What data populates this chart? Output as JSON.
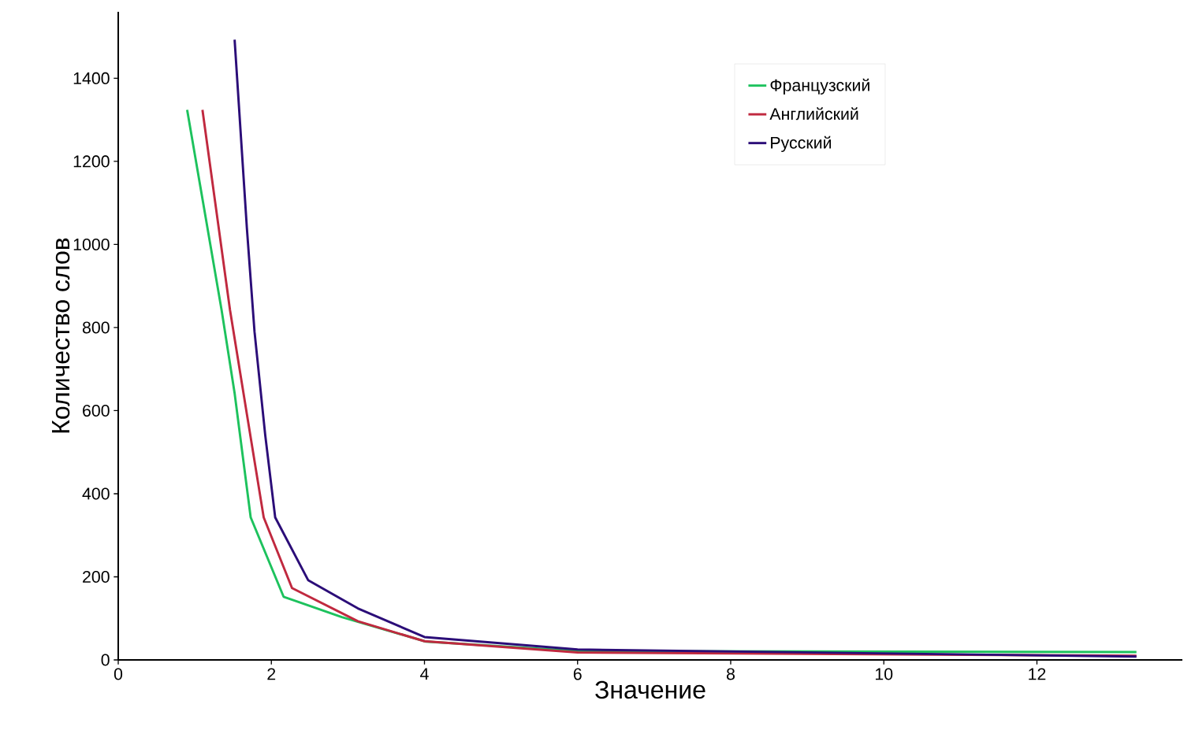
{
  "chart_data": {
    "type": "line",
    "xlabel": "Значение",
    "ylabel": "Количество слов",
    "xlim": [
      0,
      13.9
    ],
    "ylim": [
      0,
      1560
    ],
    "xticks": [
      0,
      2,
      4,
      6,
      8,
      10,
      12
    ],
    "yticks": [
      0,
      200,
      400,
      600,
      800,
      1000,
      1200,
      1400
    ],
    "legend": "top",
    "grid": false,
    "marker": "none",
    "line_style": "solid",
    "series": [
      {
        "name": "Французский",
        "color": "#1dc25d",
        "x": [
          0.9,
          1.35,
          1.52,
          1.73,
          2.16,
          2.92,
          4.02,
          6.03,
          13.3
        ],
        "values": [
          1324,
          842,
          642,
          343,
          152,
          103,
          44,
          21,
          19
        ]
      },
      {
        "name": "Английский",
        "color": "#c0293f",
        "x": [
          1.1,
          1.46,
          1.68,
          1.9,
          2.27,
          3.13,
          4.0,
          6.0,
          13.3
        ],
        "values": [
          1324,
          842,
          592,
          343,
          173,
          93,
          45,
          18,
          10
        ]
      },
      {
        "name": "Русский",
        "color": "#2b0d78",
        "x": [
          1.52,
          1.68,
          1.78,
          1.92,
          2.05,
          2.48,
          3.13,
          4.0,
          6.0,
          13.3
        ],
        "values": [
          1493,
          1040,
          790,
          541,
          343,
          192,
          124,
          55,
          25,
          8
        ]
      }
    ]
  }
}
